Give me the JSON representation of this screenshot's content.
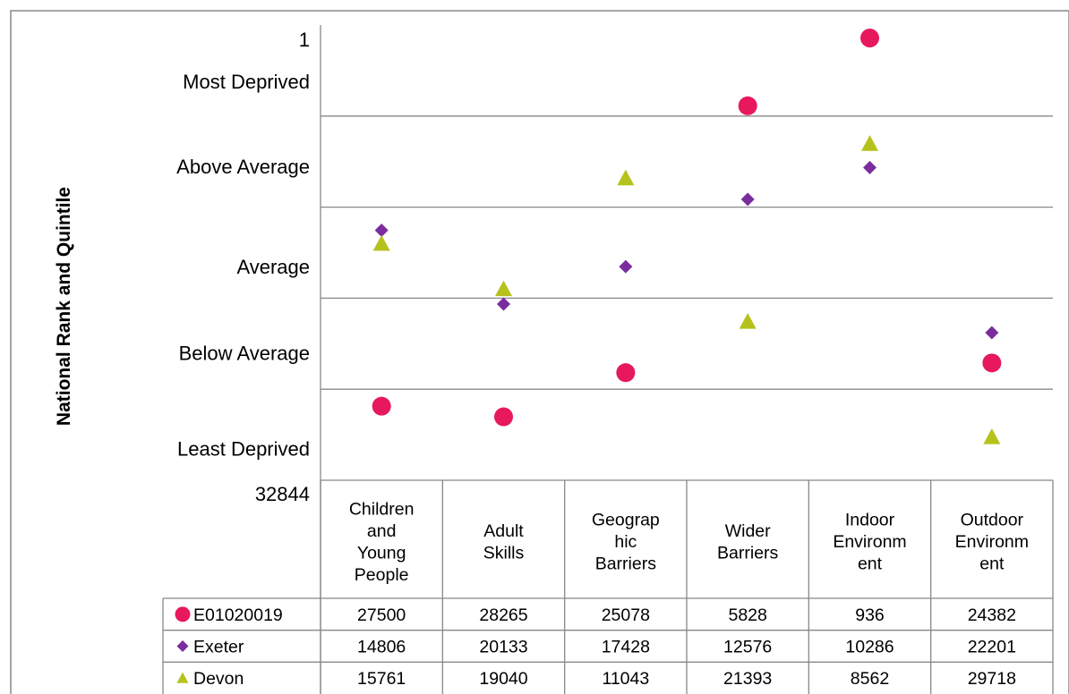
{
  "chart_data": {
    "type": "scatter",
    "ylabel": "National Rank and Quintile",
    "ytop_label": "1",
    "ybottom_label": "32844",
    "ylim": [
      1,
      32844
    ],
    "inverted_axis": true,
    "bands": [
      "Most Deprived",
      "Above Average",
      "Average",
      "Below Average",
      "Least Deprived"
    ],
    "categories": [
      [
        "Children",
        "and",
        "Young",
        "People"
      ],
      [
        "Adult",
        "Skills"
      ],
      [
        "Geograp",
        "hic",
        "Barriers"
      ],
      [
        "Wider",
        "Barriers"
      ],
      [
        "Indoor",
        "Environm",
        "ent"
      ],
      [
        "Outdoor",
        "Environm",
        "ent"
      ]
    ],
    "series": [
      {
        "name": "E01020019",
        "marker": "circle",
        "color": "#e8185c",
        "values": [
          27500,
          28265,
          25078,
          5828,
          936,
          24382
        ]
      },
      {
        "name": "Exeter",
        "marker": "diamond",
        "color": "#7b2d9e",
        "values": [
          14806,
          20133,
          17428,
          12576,
          10286,
          22201
        ]
      },
      {
        "name": "Devon",
        "marker": "triangle",
        "color": "#b5c21c",
        "values": [
          15761,
          19040,
          11043,
          21393,
          8562,
          29718
        ]
      }
    ],
    "grid": true,
    "legend": "data-table"
  }
}
